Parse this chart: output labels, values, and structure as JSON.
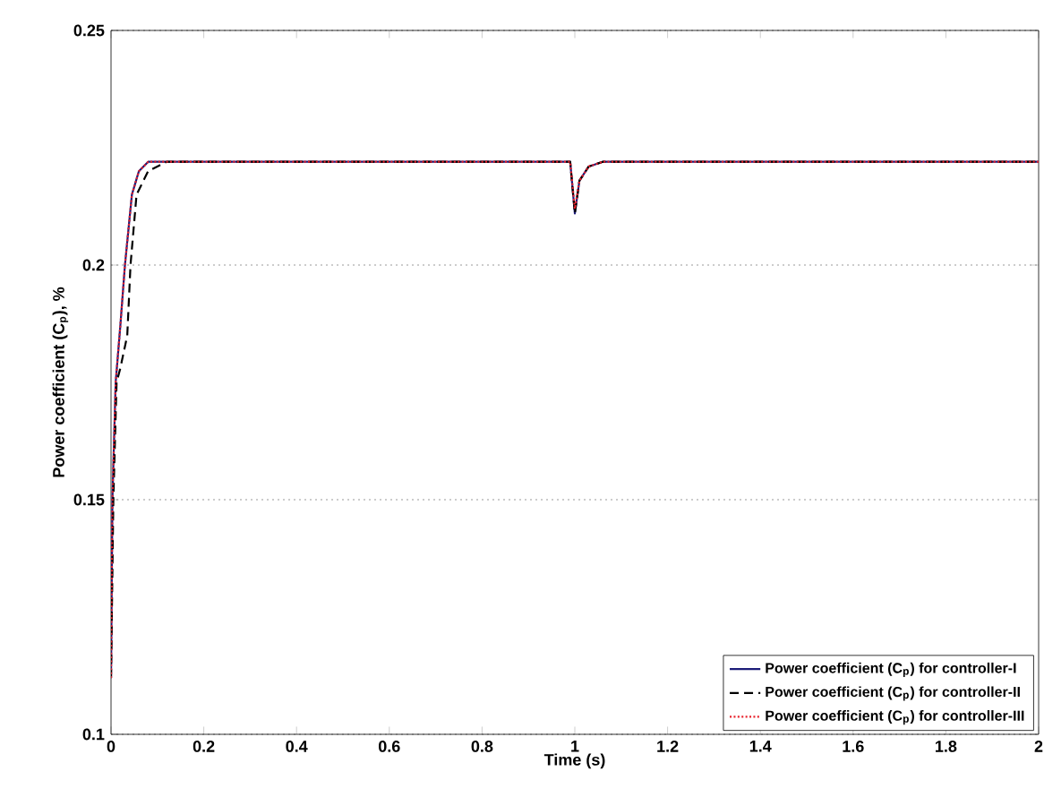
{
  "chart_data": {
    "type": "line",
    "xlabel": "Time (s)",
    "ylabel": "Power coefficient (C$_{p}$), %",
    "xlim": [
      0,
      2
    ],
    "ylim": [
      0.1,
      0.25
    ],
    "xticks": [
      0,
      0.2,
      0.4,
      0.6,
      0.8,
      1,
      1.2,
      1.4,
      1.6,
      1.8,
      2
    ],
    "yticks": [
      0.1,
      0.15,
      0.2,
      0.25
    ],
    "grid": "y",
    "legend": "bottom right",
    "marker": "none",
    "series": [
      {
        "name": "Power coefficient (C$_{p}$) for controller-I",
        "color": "#1c1c78",
        "line_style": "solid",
        "x": [
          0,
          0.003,
          0.01,
          0.02,
          0.03,
          0.045,
          0.06,
          0.08,
          0.1,
          0.99,
          1.0,
          1.01,
          1.03,
          1.06,
          2.0
        ],
        "values": [
          0.112,
          0.15,
          0.175,
          0.187,
          0.2,
          0.215,
          0.22,
          0.222,
          0.222,
          0.222,
          0.211,
          0.218,
          0.221,
          0.222,
          0.222
        ]
      },
      {
        "name": "Power coefficient (C$_{p}$) for controller-II",
        "color": "#000000",
        "line_style": "dashed",
        "x": [
          0,
          0.005,
          0.012,
          0.02,
          0.035,
          0.042,
          0.055,
          0.08,
          0.12,
          0.99,
          1.0,
          1.01,
          1.03,
          1.06,
          2.0
        ],
        "values": [
          0.112,
          0.15,
          0.175,
          0.178,
          0.185,
          0.2,
          0.215,
          0.22,
          0.222,
          0.222,
          0.211,
          0.218,
          0.221,
          0.222,
          0.222
        ]
      },
      {
        "name": "Power coefficient (C$_{p}$) for controller-III",
        "color": "#e8202a",
        "line_style": "dotted",
        "x": [
          0,
          0.003,
          0.01,
          0.02,
          0.03,
          0.045,
          0.06,
          0.08,
          0.1,
          0.99,
          1.0,
          1.01,
          1.03,
          1.06,
          2.0
        ],
        "values": [
          0.112,
          0.15,
          0.175,
          0.187,
          0.2,
          0.215,
          0.22,
          0.222,
          0.222,
          0.222,
          0.212,
          0.218,
          0.221,
          0.222,
          0.222
        ]
      }
    ]
  }
}
